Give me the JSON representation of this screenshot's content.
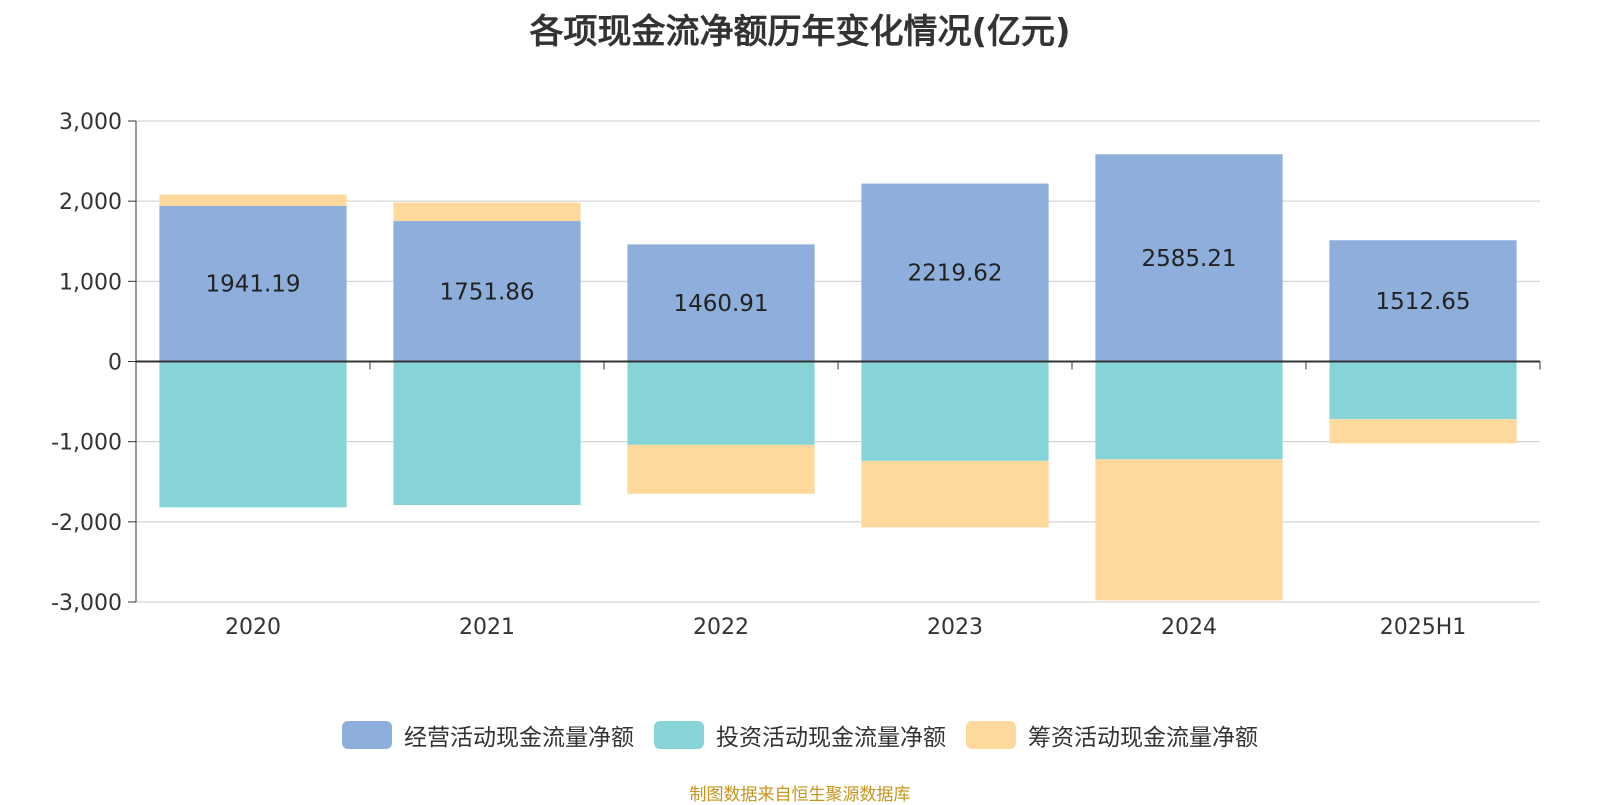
{
  "title": "各项现金流净额历年变化情况(亿元)",
  "source_note": "制图数据来自恒生聚源数据库",
  "colors": {
    "operating": "#8eaedb",
    "investing": "#86d4d8",
    "financing": "#ffd99b"
  },
  "chart_data": {
    "type": "bar",
    "stacked": true,
    "title": "各项现金流净额历年变化情况(亿元)",
    "categories": [
      "2020",
      "2021",
      "2022",
      "2023",
      "2024",
      "2025H1"
    ],
    "ylim": [
      -3000,
      3000
    ],
    "yticks": [
      3000,
      2000,
      1000,
      0,
      -1000,
      -2000,
      -3000
    ],
    "ytick_labels": [
      "3,000",
      "2,000",
      "1,000",
      "0",
      "-1,000",
      "-2,000",
      "-3,000"
    ],
    "grid": true,
    "legend_position": "bottom",
    "series": [
      {
        "name": "经营活动现金流量净额",
        "values": [
          1941.19,
          1751.86,
          1460.91,
          2219.62,
          2585.21,
          1512.65
        ],
        "show_labels": true
      },
      {
        "name": "投资活动现金流量净额",
        "values": [
          -1820,
          -1790,
          -1040,
          -1240,
          -1220,
          -720
        ],
        "show_labels": false
      },
      {
        "name": "筹资活动现金流量净额",
        "values": [
          140,
          230,
          -610,
          -830,
          -1760,
          -300
        ],
        "show_labels": false
      }
    ]
  }
}
